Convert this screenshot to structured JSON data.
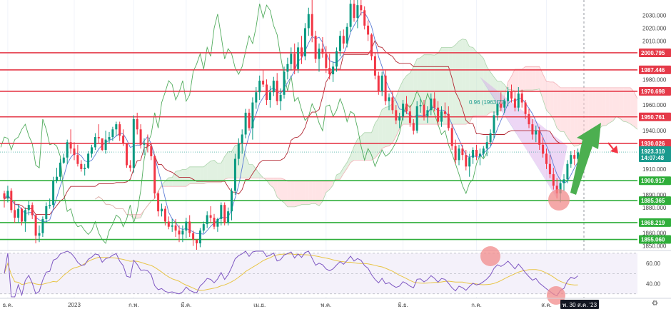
{
  "chart_data": {
    "type": "candlestick",
    "instrument": "XAUUSD",
    "price_axis": {
      "ylim": [
        1847,
        2042
      ],
      "ticks": [
        {
          "label": "2030.000",
          "v": 2030
        },
        {
          "label": "2020.000",
          "v": 2020
        },
        {
          "label": "2010.000",
          "v": 2010
        },
        {
          "label": "1980.000",
          "v": 1980
        },
        {
          "label": "1960.000",
          "v": 1960
        },
        {
          "label": "1940.000",
          "v": 1940
        },
        {
          "label": "1910.000",
          "v": 1910
        },
        {
          "label": "1890.000",
          "v": 1890
        },
        {
          "label": "1880.000",
          "v": 1880
        },
        {
          "label": "1860.000",
          "v": 1860
        },
        {
          "label": "1850.000",
          "v": 1850
        }
      ]
    },
    "levels": [
      {
        "label": "2000.795",
        "v": 2000.795,
        "color": "#e53948"
      },
      {
        "label": "1987.446",
        "v": 1987.446,
        "color": "#e53948"
      },
      {
        "label": "1970.698",
        "v": 1970.698,
        "color": "#e53948"
      },
      {
        "label": "1950.761",
        "v": 1950.761,
        "color": "#e53948"
      },
      {
        "label": "1930.026",
        "v": 1930.026,
        "color": "#e53948"
      },
      {
        "label": "1900.917",
        "v": 1900.917,
        "color": "#2fae3a"
      },
      {
        "label": "1885.365",
        "v": 1885.365,
        "color": "#2fae3a"
      },
      {
        "label": "1868.219",
        "v": 1868.219,
        "color": "#2fae3a"
      },
      {
        "label": "1855.060",
        "v": 1855.06,
        "color": "#2fae3a"
      }
    ],
    "current_price": {
      "label": "1923.310",
      "countdown": "14:07:48",
      "v": 1923.31,
      "color": "#1a9a8e"
    },
    "fib_label": "0.96 (1963.77)",
    "candles": [
      [
        1891,
        1893,
        1880,
        1887
      ],
      [
        1887,
        1897,
        1884,
        1893
      ],
      [
        1893,
        1895,
        1876,
        1878
      ],
      [
        1878,
        1885,
        1868,
        1872
      ],
      [
        1872,
        1882,
        1868,
        1879
      ],
      [
        1879,
        1880,
        1866,
        1869
      ],
      [
        1869,
        1880,
        1861,
        1878
      ],
      [
        1878,
        1885,
        1874,
        1882
      ],
      [
        1882,
        1884,
        1871,
        1874
      ],
      [
        1874,
        1875,
        1852,
        1858
      ],
      [
        1858,
        1866,
        1853,
        1860
      ],
      [
        1860,
        1873,
        1857,
        1871
      ],
      [
        1871,
        1884,
        1868,
        1881
      ],
      [
        1881,
        1887,
        1879,
        1882
      ],
      [
        1882,
        1904,
        1880,
        1901
      ],
      [
        1901,
        1911,
        1899,
        1904
      ],
      [
        1904,
        1918,
        1901,
        1915
      ],
      [
        1915,
        1922,
        1914,
        1919
      ],
      [
        1919,
        1933,
        1914,
        1931
      ],
      [
        1931,
        1941,
        1922,
        1926
      ],
      [
        1926,
        1931,
        1917,
        1921
      ],
      [
        1921,
        1929,
        1912,
        1914
      ],
      [
        1914,
        1917,
        1908,
        1910
      ],
      [
        1910,
        1914,
        1905,
        1911
      ],
      [
        1911,
        1924,
        1910,
        1922
      ],
      [
        1922,
        1929,
        1919,
        1927
      ],
      [
        1927,
        1938,
        1925,
        1935
      ],
      [
        1935,
        1945,
        1930,
        1934
      ],
      [
        1934,
        1933,
        1924,
        1925
      ],
      [
        1925,
        1940,
        1922,
        1933
      ],
      [
        1933,
        1939,
        1930,
        1935
      ],
      [
        1935,
        1943,
        1932,
        1941
      ],
      [
        1941,
        1947,
        1936,
        1945
      ],
      [
        1945,
        1947,
        1932,
        1936
      ],
      [
        1936,
        1941,
        1928,
        1930
      ],
      [
        1930,
        1930,
        1911,
        1913
      ],
      [
        1913,
        1917,
        1908,
        1911
      ],
      [
        1911,
        1952,
        1907,
        1949
      ],
      [
        1949,
        1954,
        1937,
        1941
      ],
      [
        1941,
        1945,
        1926,
        1929
      ],
      [
        1929,
        1934,
        1921,
        1930
      ],
      [
        1930,
        1937,
        1923,
        1928
      ],
      [
        1928,
        1930,
        1917,
        1920
      ],
      [
        1920,
        1921,
        1887,
        1891
      ],
      [
        1891,
        1893,
        1873,
        1877
      ],
      [
        1877,
        1883,
        1873,
        1879
      ],
      [
        1879,
        1881,
        1866,
        1869
      ],
      [
        1869,
        1873,
        1863,
        1865
      ],
      [
        1865,
        1871,
        1861,
        1866
      ],
      [
        1866,
        1871,
        1857,
        1862
      ],
      [
        1862,
        1866,
        1853,
        1859
      ],
      [
        1859,
        1866,
        1853,
        1862
      ],
      [
        1862,
        1872,
        1856,
        1869
      ],
      [
        1869,
        1874,
        1857,
        1860
      ],
      [
        1860,
        1862,
        1850,
        1855
      ],
      [
        1855,
        1855,
        1847,
        1852
      ],
      [
        1852,
        1864,
        1849,
        1862
      ],
      [
        1862,
        1869,
        1860,
        1867
      ],
      [
        1867,
        1877,
        1864,
        1874
      ],
      [
        1874,
        1881,
        1868,
        1872
      ],
      [
        1872,
        1875,
        1863,
        1865
      ],
      [
        1865,
        1872,
        1861,
        1871
      ],
      [
        1871,
        1884,
        1866,
        1882
      ],
      [
        1882,
        1884,
        1866,
        1868
      ],
      [
        1868,
        1880,
        1866,
        1877
      ],
      [
        1877,
        1895,
        1870,
        1893
      ],
      [
        1893,
        1922,
        1890,
        1918
      ],
      [
        1918,
        1934,
        1913,
        1930
      ],
      [
        1930,
        1941,
        1922,
        1937
      ],
      [
        1937,
        1957,
        1934,
        1954
      ],
      [
        1954,
        1957,
        1940,
        1942
      ],
      [
        1942,
        1966,
        1933,
        1962
      ],
      [
        1962,
        1974,
        1957,
        1970
      ],
      [
        1970,
        1983,
        1964,
        1979
      ],
      [
        1979,
        1987,
        1974,
        1976
      ],
      [
        1976,
        1980,
        1960,
        1964
      ],
      [
        1964,
        1975,
        1958,
        1970
      ],
      [
        1970,
        1982,
        1967,
        1979
      ],
      [
        1979,
        1985,
        1960,
        1963
      ],
      [
        1963,
        1973,
        1956,
        1968
      ],
      [
        1968,
        1990,
        1965,
        1986
      ],
      [
        1986,
        1997,
        1980,
        1992
      ],
      [
        1992,
        2005,
        1987,
        2000
      ],
      [
        2000,
        2008,
        1984,
        1988
      ],
      [
        1988,
        2009,
        1985,
        2005
      ],
      [
        2005,
        2014,
        1992,
        1998
      ],
      [
        1998,
        2024,
        1995,
        2020
      ],
      [
        2020,
        2036,
        2014,
        2031
      ],
      [
        2031,
        2043,
        2009,
        2014
      ],
      [
        2014,
        2018,
        1993,
        1996
      ],
      [
        1996,
        2008,
        1986,
        2004
      ],
      [
        2004,
        2013,
        1997,
        2000
      ],
      [
        2000,
        2006,
        1985,
        1989
      ],
      [
        1989,
        2000,
        1980,
        1984
      ],
      [
        1984,
        1994,
        1978,
        1990
      ],
      [
        1990,
        2005,
        1986,
        2002
      ],
      [
        2002,
        2018,
        1998,
        2014
      ],
      [
        2014,
        2019,
        2004,
        2008
      ],
      [
        2008,
        2024,
        2005,
        2021
      ],
      [
        2021,
        2043,
        2017,
        2039
      ],
      [
        2039,
        2043,
        2025,
        2028
      ],
      [
        2028,
        2043,
        2020,
        2038
      ],
      [
        2038,
        2043,
        2030,
        2034
      ],
      [
        2034,
        2037,
        2019,
        2022
      ],
      [
        2022,
        2026,
        2010,
        2015
      ],
      [
        2015,
        2016,
        1995,
        1998
      ],
      [
        1998,
        2001,
        1980,
        1983
      ],
      [
        1983,
        1986,
        1968,
        1971
      ],
      [
        1971,
        1986,
        1967,
        1983
      ],
      [
        1983,
        1987,
        1960,
        1963
      ],
      [
        1963,
        1969,
        1956,
        1966
      ],
      [
        1966,
        1971,
        1953,
        1956
      ],
      [
        1956,
        1960,
        1945,
        1948
      ],
      [
        1948,
        1954,
        1942,
        1951
      ],
      [
        1951,
        1964,
        1948,
        1961
      ],
      [
        1961,
        1967,
        1953,
        1955
      ],
      [
        1955,
        1960,
        1943,
        1946
      ],
      [
        1946,
        1949,
        1937,
        1940
      ],
      [
        1940,
        1963,
        1938,
        1959
      ],
      [
        1959,
        1965,
        1954,
        1960
      ],
      [
        1960,
        1964,
        1948,
        1951
      ],
      [
        1951,
        1959,
        1946,
        1956
      ],
      [
        1956,
        1969,
        1952,
        1965
      ],
      [
        1965,
        1970,
        1955,
        1958
      ],
      [
        1958,
        1963,
        1944,
        1947
      ],
      [
        1947,
        1959,
        1943,
        1955
      ],
      [
        1955,
        1962,
        1950,
        1953
      ],
      [
        1953,
        1959,
        1940,
        1942
      ],
      [
        1942,
        1945,
        1925,
        1928
      ],
      [
        1928,
        1933,
        1914,
        1917
      ],
      [
        1917,
        1929,
        1913,
        1926
      ],
      [
        1926,
        1929,
        1917,
        1921
      ],
      [
        1921,
        1925,
        1909,
        1912
      ],
      [
        1912,
        1922,
        1904,
        1919
      ],
      [
        1919,
        1927,
        1914,
        1925
      ],
      [
        1925,
        1929,
        1917,
        1920
      ],
      [
        1920,
        1926,
        1913,
        1922
      ],
      [
        1922,
        1928,
        1919,
        1926
      ],
      [
        1926,
        1936,
        1920,
        1931
      ],
      [
        1931,
        1941,
        1928,
        1938
      ],
      [
        1938,
        1955,
        1934,
        1952
      ],
      [
        1952,
        1964,
        1948,
        1961
      ],
      [
        1961,
        1970,
        1955,
        1958
      ],
      [
        1958,
        1965,
        1954,
        1963
      ],
      [
        1963,
        1974,
        1959,
        1971
      ],
      [
        1971,
        1976,
        1962,
        1965
      ],
      [
        1965,
        1971,
        1955,
        1958
      ],
      [
        1958,
        1974,
        1955,
        1969
      ],
      [
        1969,
        1972,
        1958,
        1962
      ],
      [
        1962,
        1964,
        1949,
        1953
      ],
      [
        1953,
        1957,
        1942,
        1945
      ],
      [
        1945,
        1949,
        1933,
        1937
      ],
      [
        1937,
        1944,
        1931,
        1940
      ],
      [
        1940,
        1943,
        1925,
        1929
      ],
      [
        1929,
        1935,
        1919,
        1922
      ],
      [
        1922,
        1926,
        1910,
        1914
      ],
      [
        1914,
        1921,
        1903,
        1906
      ],
      [
        1906,
        1911,
        1894,
        1897
      ],
      [
        1897,
        1903,
        1887,
        1891
      ],
      [
        1891,
        1902,
        1884,
        1899
      ],
      [
        1899,
        1906,
        1893,
        1902
      ],
      [
        1902,
        1917,
        1899,
        1914
      ],
      [
        1914,
        1924,
        1911,
        1921
      ],
      [
        1921,
        1925,
        1913,
        1918
      ],
      [
        1918,
        1926,
        1915,
        1923
      ]
    ]
  },
  "x_axis": {
    "ticks": [
      {
        "label": "ธ.ค.",
        "i": 1
      },
      {
        "label": "2023",
        "i": 20
      },
      {
        "label": "ก.พ.",
        "i": 37
      },
      {
        "label": "มี.ค.",
        "i": 52
      },
      {
        "label": "เม.ย.",
        "i": 73
      },
      {
        "label": "พ.ค.",
        "i": 92
      },
      {
        "label": "มิ.ย.",
        "i": 114
      },
      {
        "label": "ก.ค.",
        "i": 135
      },
      {
        "label": "ส.ค.",
        "i": 155
      }
    ],
    "current_date": "พ. 30 ส.ค. '23"
  },
  "rsi": {
    "ylim": [
      27,
      72
    ],
    "ticks": [
      {
        "label": "60.00",
        "v": 60
      },
      {
        "label": "40.00",
        "v": 40
      }
    ],
    "upper": 70,
    "lower": 30
  },
  "colors": {
    "up": "#089981",
    "down": "#f23645",
    "ma": "#5b7bd5",
    "kijun": "#b22833",
    "chikou": "#3fa34d",
    "rsi": "#7e57c2",
    "rsi_ma": "#e8c547",
    "cloud_bull": "#c8e6c9",
    "cloud_bear": "#ffcdd2",
    "arrow_up": "#4caf50",
    "arrow_down": "#f23645",
    "channel": "#6dd0da",
    "channel_upper": "#d7a6e8"
  },
  "icons": {
    "settings": "settings-icon"
  }
}
